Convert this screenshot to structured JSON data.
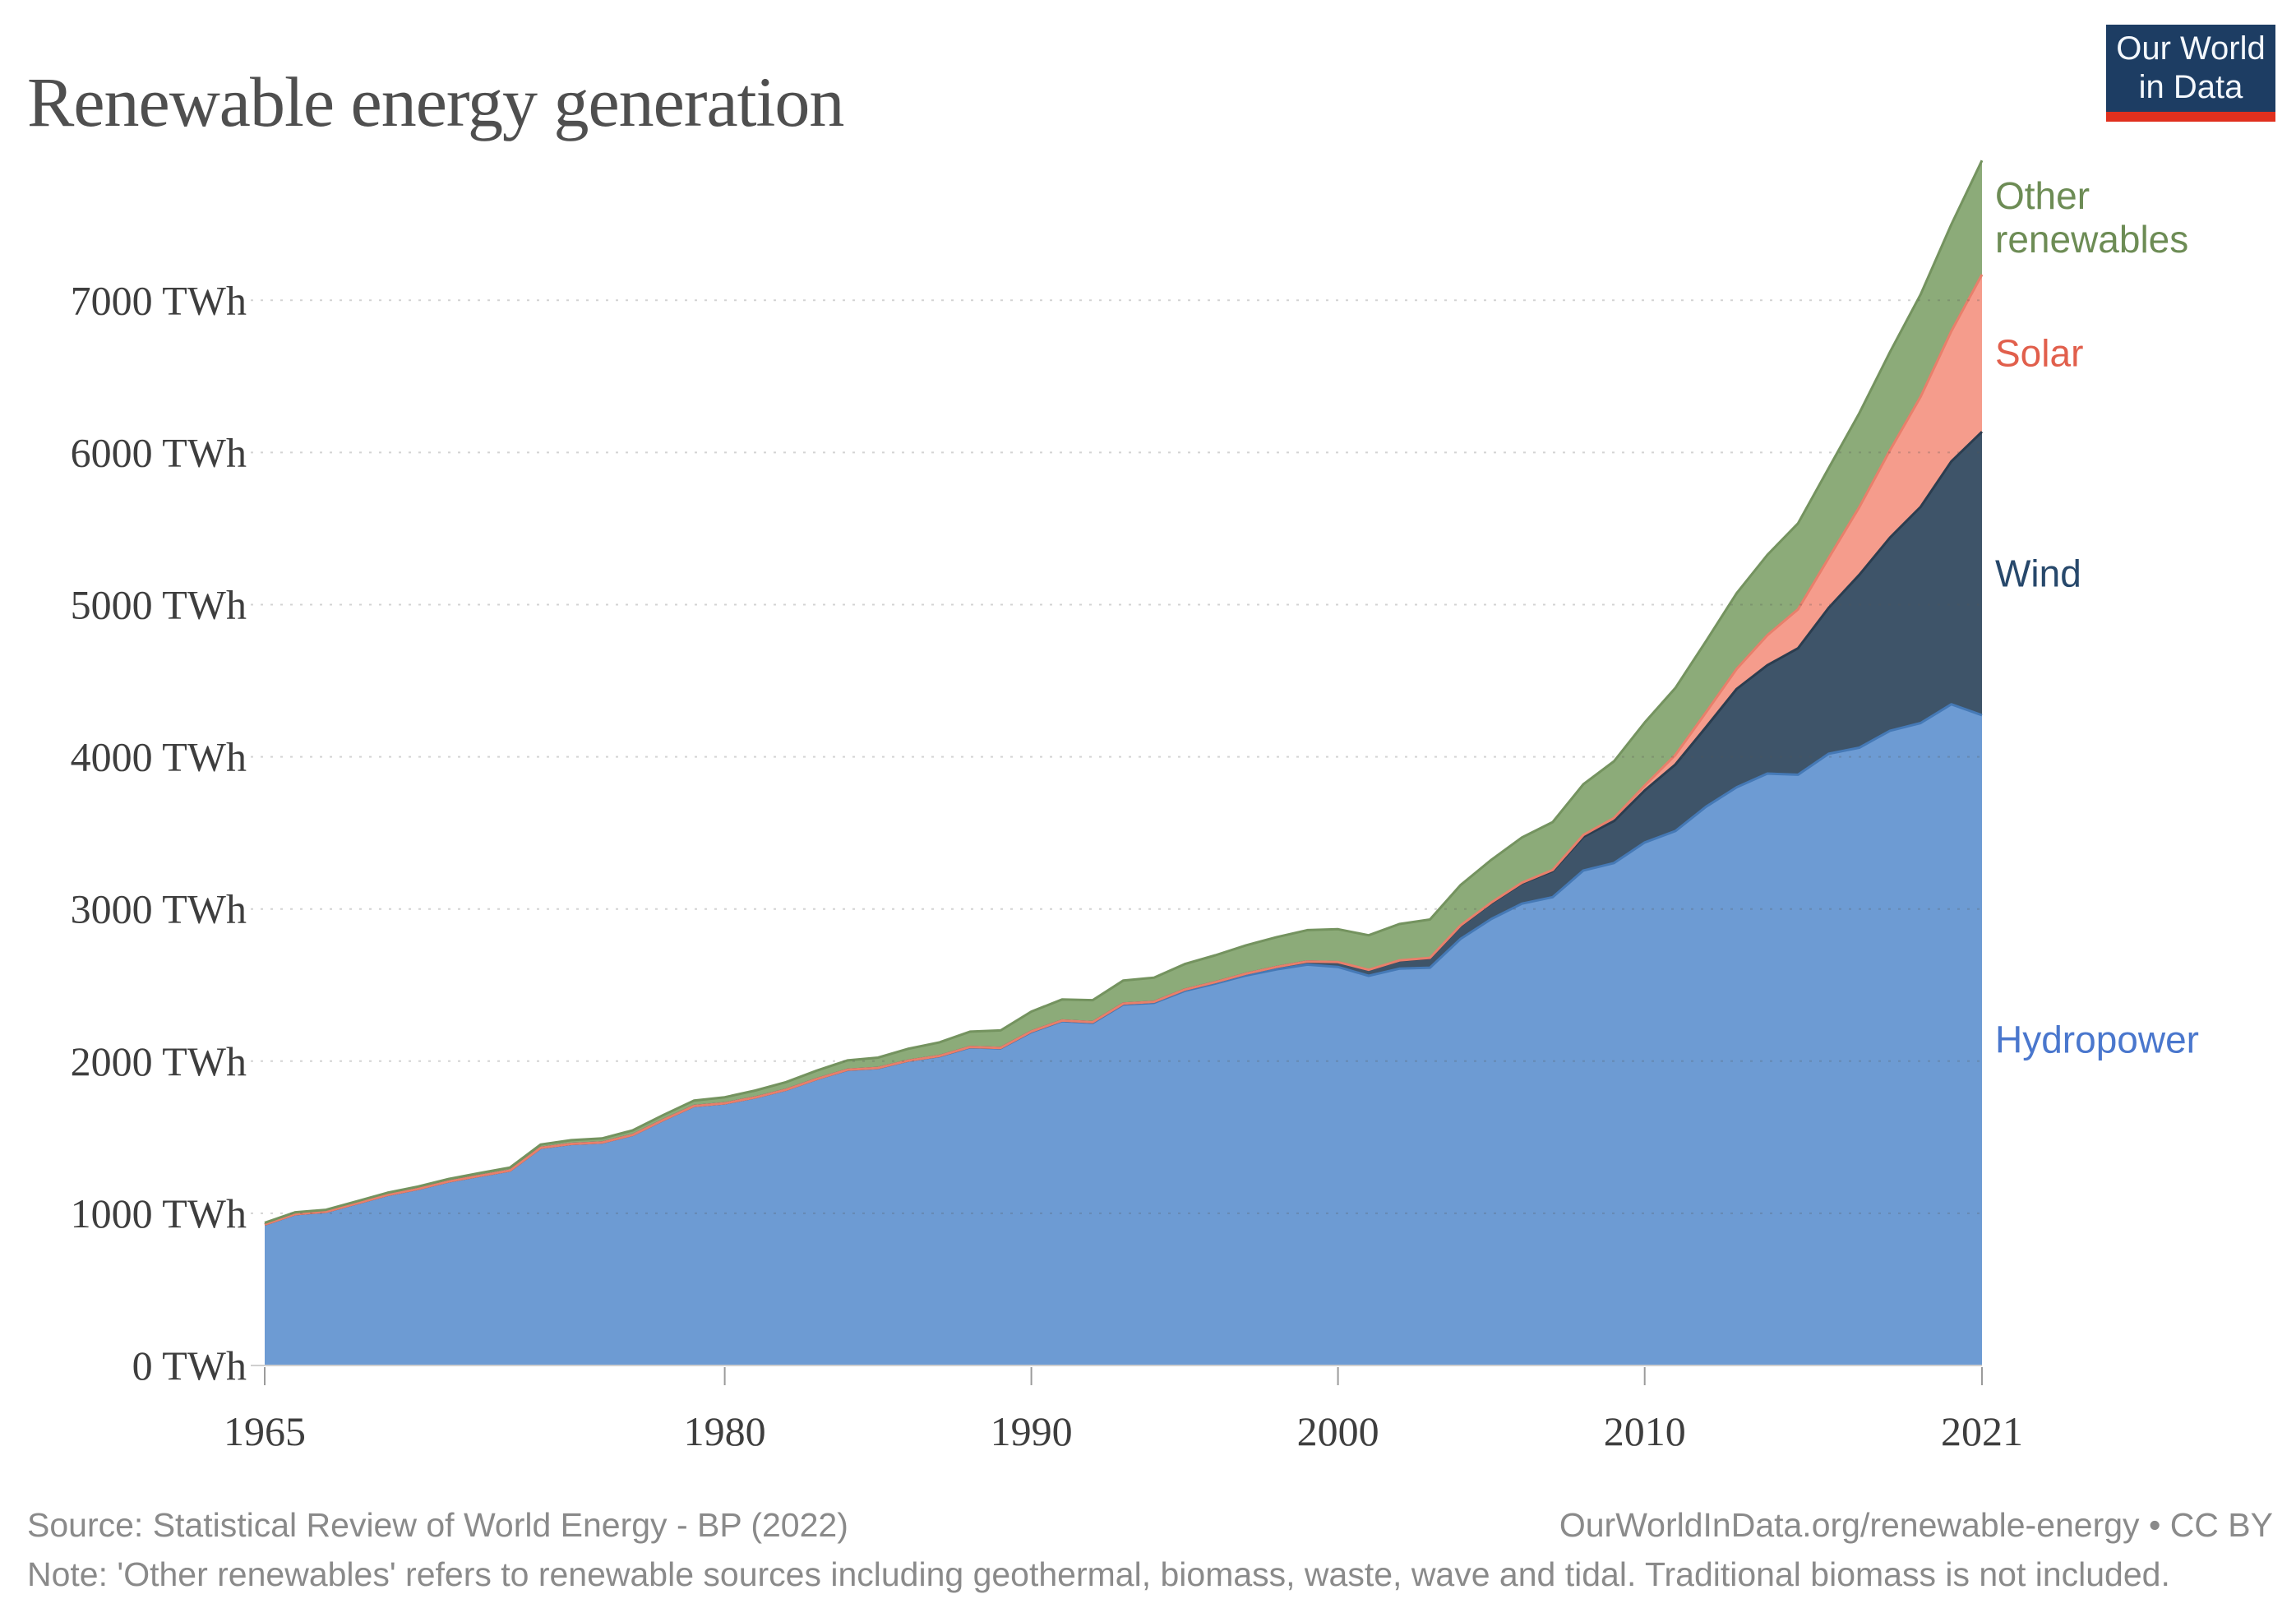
{
  "header": {
    "title": "Renewable energy generation",
    "logo": {
      "line1": "Our World",
      "line2": "in Data",
      "bg_color": "#1d3d63",
      "accent_color": "#e0301e"
    }
  },
  "footer": {
    "source": "Source: Statistical Review of World Energy - BP (2022)",
    "note": "Note: 'Other renewables' refers to renewable sources including geothermal, biomass, waste, wave and tidal. Traditional biomass is not included.",
    "attribution": "OurWorldInData.org/renewable-energy • CC BY"
  },
  "chart_data": {
    "type": "area",
    "stacked": true,
    "title": "Renewable energy generation",
    "xlabel": "",
    "ylabel": "",
    "unit": "TWh",
    "grid": "dotted-horizontal-over-fills",
    "legend_position": "right-of-plot-inline",
    "ylim": [
      0,
      7920
    ],
    "x_range": [
      1965,
      2021
    ],
    "x": [
      1965,
      1966,
      1967,
      1968,
      1969,
      1970,
      1971,
      1972,
      1973,
      1974,
      1975,
      1976,
      1977,
      1978,
      1979,
      1980,
      1981,
      1982,
      1983,
      1984,
      1985,
      1986,
      1987,
      1988,
      1989,
      1990,
      1991,
      1992,
      1993,
      1994,
      1995,
      1996,
      1997,
      1998,
      1999,
      2000,
      2001,
      2002,
      2003,
      2004,
      2005,
      2006,
      2007,
      2008,
      2009,
      2010,
      2011,
      2012,
      2013,
      2014,
      2015,
      2016,
      2017,
      2018,
      2019,
      2020,
      2021
    ],
    "xticks": [
      {
        "value": 1965,
        "label": "1965"
      },
      {
        "value": 1980,
        "label": "1980"
      },
      {
        "value": 1990,
        "label": "1990"
      },
      {
        "value": 2000,
        "label": "2000"
      },
      {
        "value": 2010,
        "label": "2010"
      },
      {
        "value": 2021,
        "label": "2021"
      }
    ],
    "yticks": [
      {
        "value": 0,
        "label": "0 TWh"
      },
      {
        "value": 1000,
        "label": "1000 TWh"
      },
      {
        "value": 2000,
        "label": "2000 TWh"
      },
      {
        "value": 3000,
        "label": "3000 TWh"
      },
      {
        "value": 4000,
        "label": "4000 TWh"
      },
      {
        "value": 5000,
        "label": "5000 TWh"
      },
      {
        "value": 6000,
        "label": "6000 TWh"
      },
      {
        "value": 7000,
        "label": "7000 TWh"
      }
    ],
    "stack_order": "bottom-to-top",
    "series": [
      {
        "name": "hydropower",
        "label": "Hydropower",
        "fill": "#6d9bd3",
        "line": "#4579b6",
        "label_color": "#4a77cd",
        "values": [
          926,
          994,
          1010,
          1065,
          1120,
          1160,
          1209,
          1246,
          1281,
          1430,
          1456,
          1465,
          1515,
          1613,
          1705,
          1723,
          1762,
          1812,
          1882,
          1942,
          1954,
          2003,
          2032,
          2091,
          2084,
          2191,
          2263,
          2251,
          2372,
          2383,
          2462,
          2510,
          2563,
          2603,
          2634,
          2619,
          2561,
          2608,
          2614,
          2804,
          2934,
          3035,
          3078,
          3253,
          3302,
          3437,
          3512,
          3672,
          3800,
          3890,
          3882,
          4020,
          4060,
          4171,
          4222,
          4345,
          4274
        ]
      },
      {
        "name": "wind",
        "label": "Wind",
        "fill": "#3e5469",
        "line": "#2b3d4f",
        "label_color": "#27486b",
        "values": [
          0,
          0,
          0,
          0,
          0,
          0,
          0,
          0,
          0,
          0,
          0,
          0,
          0,
          0,
          0,
          0,
          0,
          0,
          0,
          1,
          1,
          1,
          2,
          2,
          3,
          4,
          4,
          5,
          6,
          7,
          8,
          9,
          12,
          16,
          21,
          31,
          38,
          52,
          63,
          85,
          104,
          133,
          171,
          221,
          276,
          342,
          437,
          523,
          646,
          712,
          831,
          959,
          1136,
          1270,
          1421,
          1596,
          1862
        ]
      },
      {
        "name": "solar",
        "label": "Solar",
        "fill": "#f59c8c",
        "line": "#e87f6b",
        "label_color": "#e15f4c",
        "values": [
          0,
          0,
          0,
          0,
          0,
          0,
          0,
          0,
          0,
          0,
          0,
          0,
          0,
          0,
          0,
          0,
          0,
          0,
          0,
          0,
          0,
          0,
          0,
          0,
          0,
          0,
          0,
          0,
          0,
          0,
          0,
          0,
          0,
          0,
          0,
          1,
          1,
          2,
          2,
          3,
          4,
          5,
          7,
          12,
          20,
          32,
          63,
          97,
          132,
          197,
          256,
          328,
          445,
          574,
          724,
          856,
          1033
        ]
      },
      {
        "name": "other_renewables",
        "label": "Other renewables",
        "fill": "#8cab79",
        "line": "#74935f",
        "label_color": "#6d8c55",
        "values": [
          12,
          13,
          13,
          14,
          15,
          16,
          17,
          18,
          20,
          22,
          25,
          27,
          30,
          33,
          36,
          40,
          45,
          50,
          56,
          62,
          68,
          78,
          89,
          101,
          115,
          131,
          138,
          145,
          152,
          159,
          168,
          177,
          186,
          196,
          206,
          216,
          227,
          239,
          252,
          266,
          281,
          297,
          315,
          334,
          373,
          414,
          440,
          468,
          497,
          528,
          565,
          590,
          617,
          645,
          672,
          701,
          750
        ]
      }
    ]
  }
}
